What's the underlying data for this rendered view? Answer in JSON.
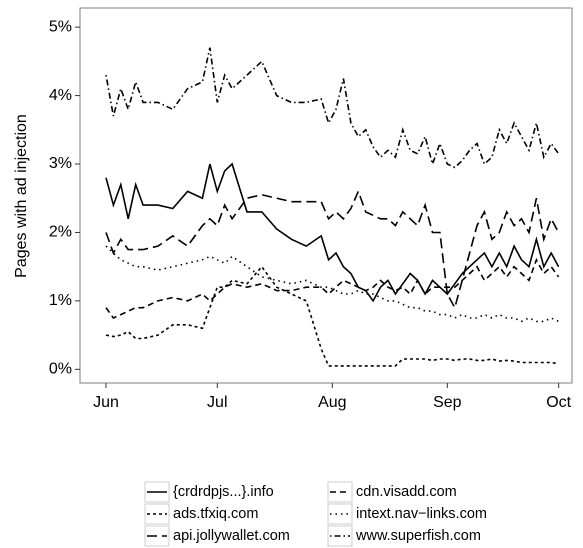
{
  "chart_data": {
    "type": "line",
    "y_label": "Pages with ad injection",
    "x": [
      0,
      2,
      4,
      6,
      8,
      10,
      14,
      18,
      22,
      26,
      28,
      30,
      32,
      34,
      38,
      42,
      46,
      50,
      54,
      58,
      60,
      62,
      64,
      66,
      68,
      70,
      72,
      74,
      76,
      78,
      80,
      82,
      84,
      86,
      88,
      90,
      92,
      94,
      96,
      98,
      100,
      102,
      104,
      106,
      108,
      110,
      112,
      114,
      116,
      118,
      120,
      122
    ],
    "xlim": [
      -7,
      125.6
    ],
    "xticks": [
      {
        "value": 0,
        "label": "Jun"
      },
      {
        "value": 30,
        "label": "Jul"
      },
      {
        "value": 61,
        "label": "Aug"
      },
      {
        "value": 92,
        "label": "Sep"
      },
      {
        "value": 122,
        "label": "Oct"
      }
    ],
    "ylim": [
      -0.2,
      5.28
    ],
    "yticks": [
      {
        "value": 0,
        "label": "0%"
      },
      {
        "value": 1,
        "label": "1%"
      },
      {
        "value": 2,
        "label": "2%"
      },
      {
        "value": 3,
        "label": "3%"
      },
      {
        "value": 4,
        "label": "4%"
      },
      {
        "value": 5,
        "label": "5%"
      }
    ],
    "legend": "bottom",
    "series": [
      {
        "name": "{crdrdpjs...}.info",
        "color": "#000000",
        "linetype": "solid",
        "values": [
          2.8,
          2.4,
          2.7,
          2.2,
          2.7,
          2.4,
          2.4,
          2.35,
          2.6,
          2.5,
          3.0,
          2.6,
          2.9,
          3.0,
          2.3,
          2.3,
          2.05,
          1.9,
          1.8,
          1.95,
          1.6,
          1.7,
          1.5,
          1.4,
          1.2,
          1.15,
          1.0,
          1.2,
          1.3,
          1.1,
          1.25,
          1.4,
          1.3,
          1.1,
          1.3,
          1.2,
          1.1,
          1.25,
          1.4,
          1.5,
          1.6,
          1.7,
          1.5,
          1.7,
          1.5,
          1.8,
          1.6,
          1.5,
          1.9,
          1.5,
          1.7,
          1.5
        ]
      },
      {
        "name": "ads.tfxiq.com",
        "color": "#000000",
        "linetype": "dashed-short",
        "values": [
          0.5,
          0.48,
          0.5,
          0.55,
          0.45,
          0.45,
          0.5,
          0.65,
          0.65,
          0.6,
          0.9,
          1.2,
          1.2,
          1.3,
          1.25,
          1.5,
          1.2,
          1.1,
          1.0,
          0.3,
          0.05,
          0.05,
          0.05,
          0.05,
          0.05,
          0.05,
          0.05,
          0.05,
          0.05,
          0.05,
          0.15,
          0.15,
          0.15,
          0.15,
          0.13,
          0.15,
          0.15,
          0.13,
          0.15,
          0.15,
          0.13,
          0.13,
          0.15,
          0.12,
          0.13,
          0.12,
          0.1,
          0.1,
          0.1,
          0.1,
          0.1,
          0.08
        ]
      },
      {
        "name": "api.jollywallet.com",
        "color": "#000000",
        "linetype": "dashed-long",
        "values": [
          2.0,
          1.7,
          1.9,
          1.75,
          1.75,
          1.75,
          1.8,
          1.95,
          1.8,
          2.1,
          2.2,
          2.1,
          2.4,
          2.2,
          2.5,
          2.55,
          2.5,
          2.45,
          2.45,
          2.45,
          2.2,
          2.3,
          2.2,
          2.35,
          2.6,
          2.3,
          2.25,
          2.2,
          2.2,
          2.1,
          2.3,
          2.2,
          2.1,
          2.4,
          2.0,
          2.0,
          1.1,
          0.9,
          1.3,
          1.7,
          2.1,
          2.3,
          1.9,
          2.0,
          2.3,
          2.1,
          2.2,
          2.0,
          2.5,
          1.9,
          2.2,
          2.0
        ]
      },
      {
        "name": "cdn.visadd.com",
        "color": "#000000",
        "linetype": "dashed",
        "values": [
          0.9,
          0.75,
          0.8,
          0.85,
          0.9,
          0.9,
          1.0,
          1.05,
          1.0,
          1.1,
          1.0,
          1.1,
          1.2,
          1.25,
          1.2,
          1.25,
          1.15,
          1.15,
          1.2,
          1.2,
          1.1,
          1.2,
          1.3,
          1.25,
          1.2,
          1.15,
          1.2,
          1.3,
          1.2,
          1.15,
          1.2,
          1.1,
          1.3,
          1.1,
          1.2,
          1.2,
          1.2,
          1.2,
          1.3,
          1.4,
          1.5,
          1.3,
          1.4,
          1.5,
          1.35,
          1.5,
          1.4,
          1.3,
          1.6,
          1.4,
          1.5,
          1.35
        ]
      },
      {
        "name": "intext.nav−links.com",
        "color": "#000000",
        "linetype": "dotted",
        "values": [
          1.8,
          1.7,
          1.6,
          1.55,
          1.5,
          1.5,
          1.45,
          1.5,
          1.55,
          1.6,
          1.65,
          1.6,
          1.55,
          1.65,
          1.5,
          1.35,
          1.3,
          1.25,
          1.3,
          1.2,
          1.2,
          1.15,
          1.1,
          1.1,
          1.15,
          1.1,
          1.1,
          1.05,
          1.0,
          1.0,
          0.95,
          0.9,
          0.9,
          0.85,
          0.85,
          0.8,
          0.8,
          0.75,
          0.8,
          0.75,
          0.75,
          0.8,
          0.75,
          0.8,
          0.75,
          0.75,
          0.7,
          0.75,
          0.7,
          0.7,
          0.75,
          0.7
        ]
      },
      {
        "name": "www.superfish.com",
        "color": "#000000",
        "linetype": "dotdash",
        "values": [
          4.3,
          3.7,
          4.1,
          3.8,
          4.2,
          3.9,
          3.9,
          3.8,
          4.1,
          4.2,
          4.7,
          3.9,
          4.3,
          4.1,
          4.3,
          4.5,
          4.0,
          3.9,
          3.9,
          3.95,
          3.6,
          3.8,
          4.25,
          3.6,
          3.4,
          3.5,
          3.25,
          3.1,
          3.2,
          3.1,
          3.5,
          3.2,
          3.15,
          3.4,
          3.0,
          3.3,
          3.0,
          2.95,
          3.05,
          3.2,
          3.3,
          3.0,
          3.1,
          3.5,
          3.3,
          3.6,
          3.4,
          3.2,
          3.6,
          3.1,
          3.3,
          3.15
        ]
      }
    ]
  }
}
